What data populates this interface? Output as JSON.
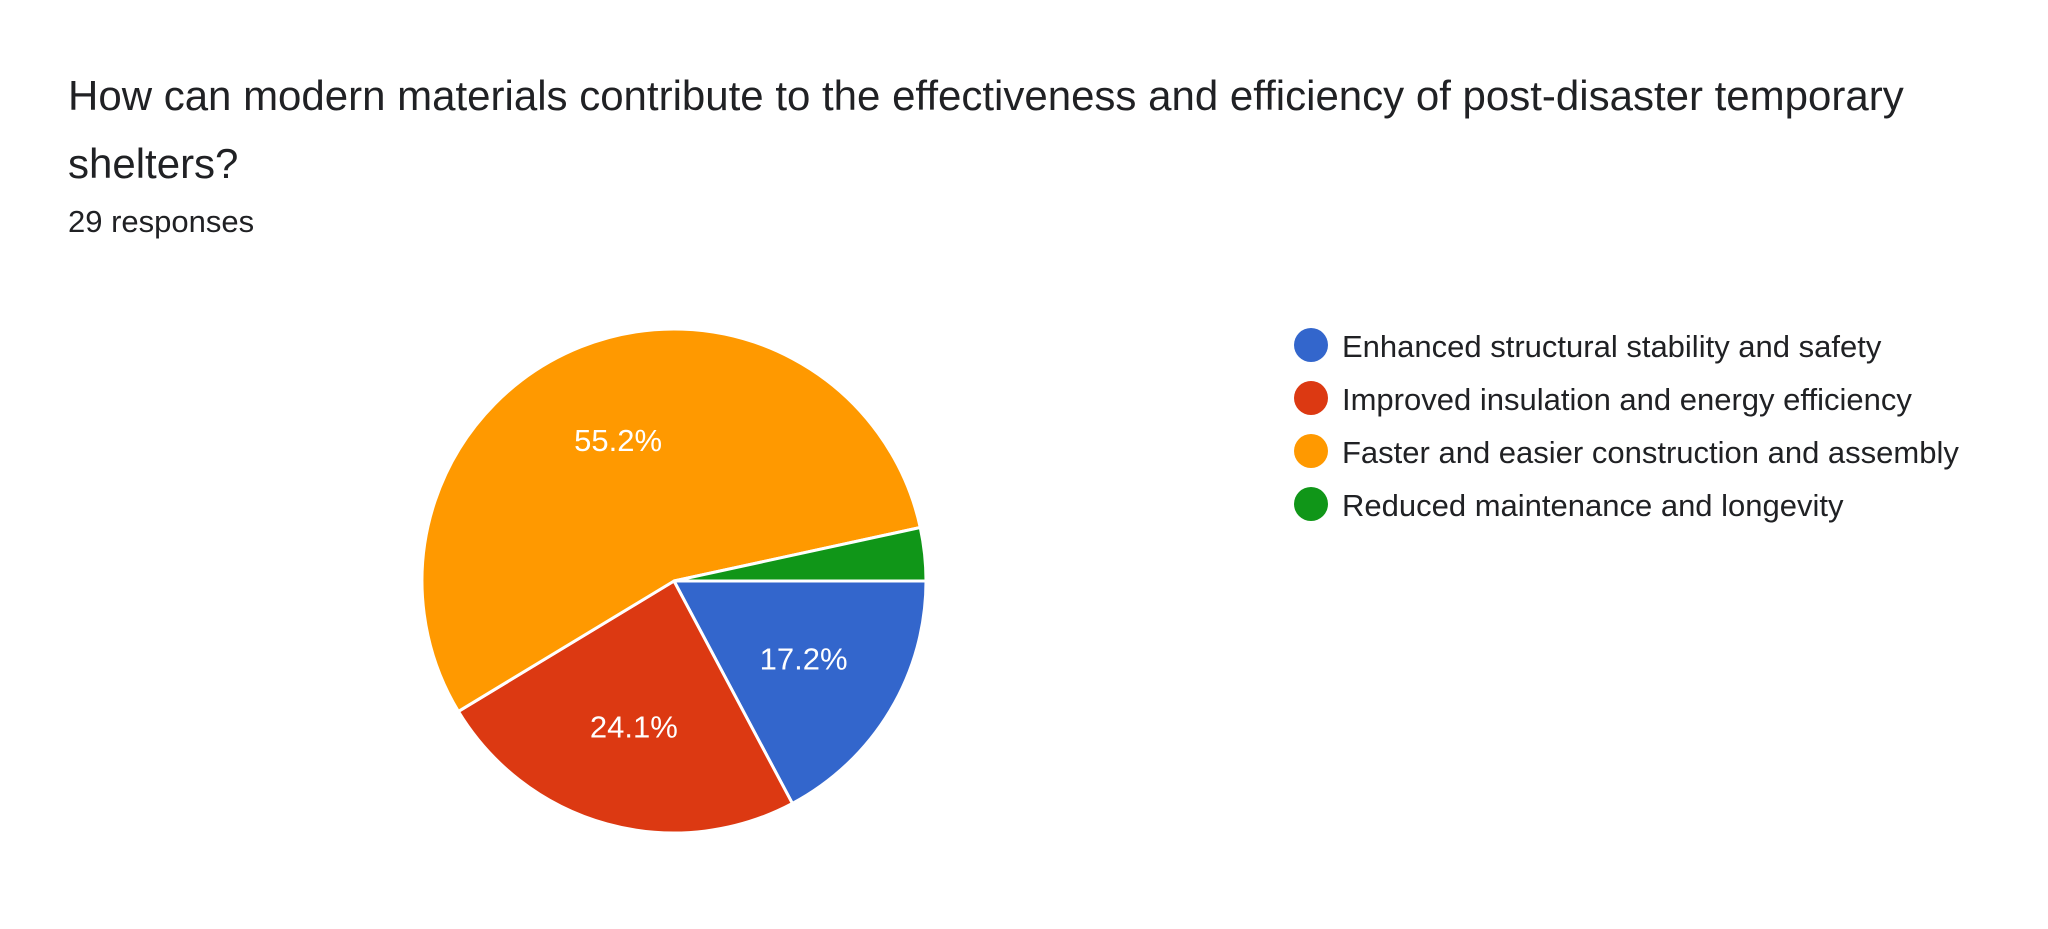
{
  "question": {
    "title": "How can modern materials contribute to the effectiveness and efficiency of post-disaster temporary shelters?",
    "responses_text": "29 responses"
  },
  "chart_data": {
    "type": "pie",
    "title": "How can modern materials contribute to the effectiveness and efficiency of post-disaster temporary shelters?",
    "total_responses": 29,
    "legend_position": "right",
    "slices": [
      {
        "name": "Enhanced structural stability and safety",
        "percent": 17.2,
        "count": 5,
        "color": "#3366cc",
        "label": "17.2%"
      },
      {
        "name": "Improved insulation and energy efficiency",
        "percent": 24.1,
        "count": 7,
        "color": "#dc3912",
        "label": "24.1%"
      },
      {
        "name": "Faster and easier construction and assembly",
        "percent": 55.2,
        "count": 16,
        "color": "#ff9900",
        "label": "55.2%"
      },
      {
        "name": "Reduced maintenance and longevity",
        "percent": 3.4,
        "count": 1,
        "color": "#109618",
        "label": ""
      }
    ]
  },
  "legend": {
    "items": [
      {
        "label": "Enhanced structural stability and safety",
        "color": "#3366cc"
      },
      {
        "label": "Improved insulation and energy efficiency",
        "color": "#dc3912"
      },
      {
        "label": "Faster and easier construction and assembly",
        "color": "#ff9900"
      },
      {
        "label": "Reduced maintenance and longevity",
        "color": "#109618"
      }
    ]
  }
}
